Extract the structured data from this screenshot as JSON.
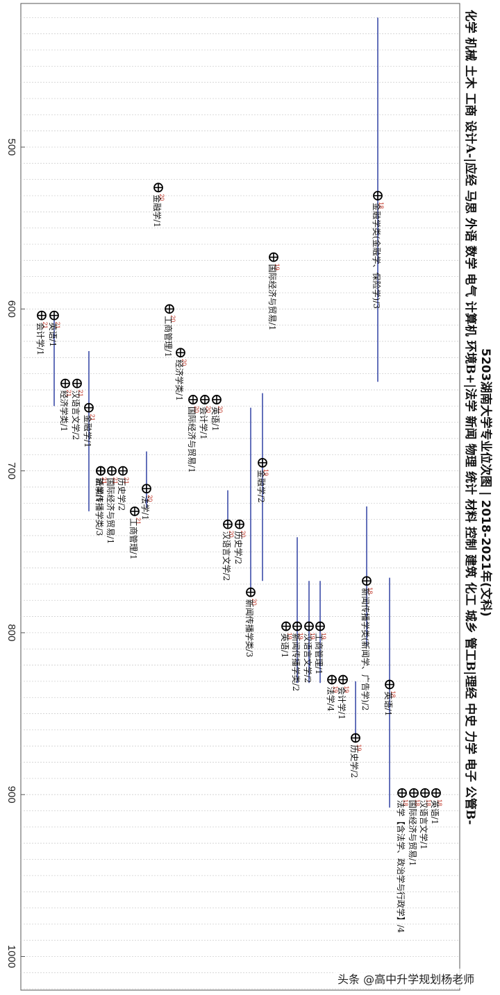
{
  "chart_data": {
    "type": "scatter",
    "title": "5203湖南大学专业位次图 | 2018-2021年(文科)",
    "side_labels": "化学 机械 土木 工商 设计A-|应经 马思 外语 数学 电气 计算机 环境B+|法学 新闻 物理 统计 材料 控制 建筑 化工 城乡 管工B|理经 中史 力学 电子 公管B-",
    "axis_ticks": [
      500,
      600,
      700,
      800,
      900,
      1000
    ],
    "axis_range": [
      420,
      1025
    ],
    "points": [
      {
        "year": "18",
        "label": "金融学类(金融学、保险学)/3",
        "value": 530,
        "range": [
          420,
          645
        ]
      },
      {
        "year": "20",
        "label": "金融学/1",
        "value": 525
      },
      {
        "year": "19",
        "label": "国际经济与贸易/1",
        "value": 568
      },
      {
        "year": "20",
        "label": "工商管理/1",
        "value": 600
      },
      {
        "year": "21",
        "label": "会计学/1",
        "value": 604
      },
      {
        "year": "21",
        "label": "英语/1",
        "value": 604,
        "range": [
          604,
          660
        ]
      },
      {
        "year": "21",
        "label": "经济学类/1",
        "value": 646
      },
      {
        "year": "21",
        "label": "汉语言文学/2",
        "value": 646
      },
      {
        "year": "20",
        "label": "经济学类/1",
        "value": 627
      },
      {
        "year": "21",
        "label": "金融学/1",
        "value": 661,
        "range": [
          626,
          725
        ]
      },
      {
        "year": "20",
        "label": "国际经济与贸易/1",
        "value": 656
      },
      {
        "year": "20",
        "label": "会计学/1",
        "value": 656
      },
      {
        "year": "20",
        "label": "英语/1",
        "value": 656
      },
      {
        "year": "21",
        "label": "法学/1",
        "value": 700
      },
      {
        "year": "21",
        "label": "新闻传播学类/3",
        "value": 700
      },
      {
        "year": "21",
        "label": "国际经济与贸易/1",
        "value": 700
      },
      {
        "year": "21",
        "label": "历史学/2",
        "value": 700
      },
      {
        "year": "21",
        "label": "工商管理/1",
        "value": 725
      },
      {
        "year": "20",
        "label": "法学/1",
        "value": 711,
        "range": [
          688,
          723
        ]
      },
      {
        "year": "20",
        "label": "汉语言文学/2",
        "value": 733,
        "range": [
          712,
          733
        ]
      },
      {
        "year": "20",
        "label": "历史学/2",
        "value": 733
      },
      {
        "year": "20",
        "label": "新闻传播学类/3",
        "value": 775,
        "range": [
          661,
          775
        ]
      },
      {
        "year": "19",
        "label": "金融学/2",
        "value": 695,
        "range": [
          652,
          768
        ]
      },
      {
        "year": "19",
        "label": "英语/1",
        "value": 796
      },
      {
        "year": "19",
        "label": "新闻传播学类/2",
        "value": 796,
        "range": [
          741,
          831
        ]
      },
      {
        "year": "19",
        "label": "汉语言文学/2",
        "value": 796,
        "range": [
          768,
          831
        ]
      },
      {
        "year": "19",
        "label": "工商管理/1",
        "value": 796,
        "range": [
          768,
          831
        ]
      },
      {
        "year": "19",
        "label": "法学/4",
        "value": 829
      },
      {
        "year": "19",
        "label": "会计学/1",
        "value": 829
      },
      {
        "year": "19",
        "label": "历史学/2",
        "value": 865,
        "range": [
          830,
          865
        ]
      },
      {
        "year": "18",
        "label": "新闻传播学类(新闻学、广告学)/2",
        "value": 768,
        "range": [
          722,
          808
        ]
      },
      {
        "year": "18",
        "label": "英语/1",
        "value": 832,
        "range": [
          766,
          908
        ]
      },
      {
        "year": "18",
        "label": "法学【含法学、政治学与行政学】/4",
        "value": 899
      },
      {
        "year": "18",
        "label": "国际经济与贸易/1",
        "value": 899
      },
      {
        "year": "18",
        "label": "汉语言文学/1",
        "value": 899
      },
      {
        "year": "18",
        "label": "英语/1",
        "value": 899
      }
    ]
  },
  "watermark_text": "头条 @高中升学规划杨老师"
}
